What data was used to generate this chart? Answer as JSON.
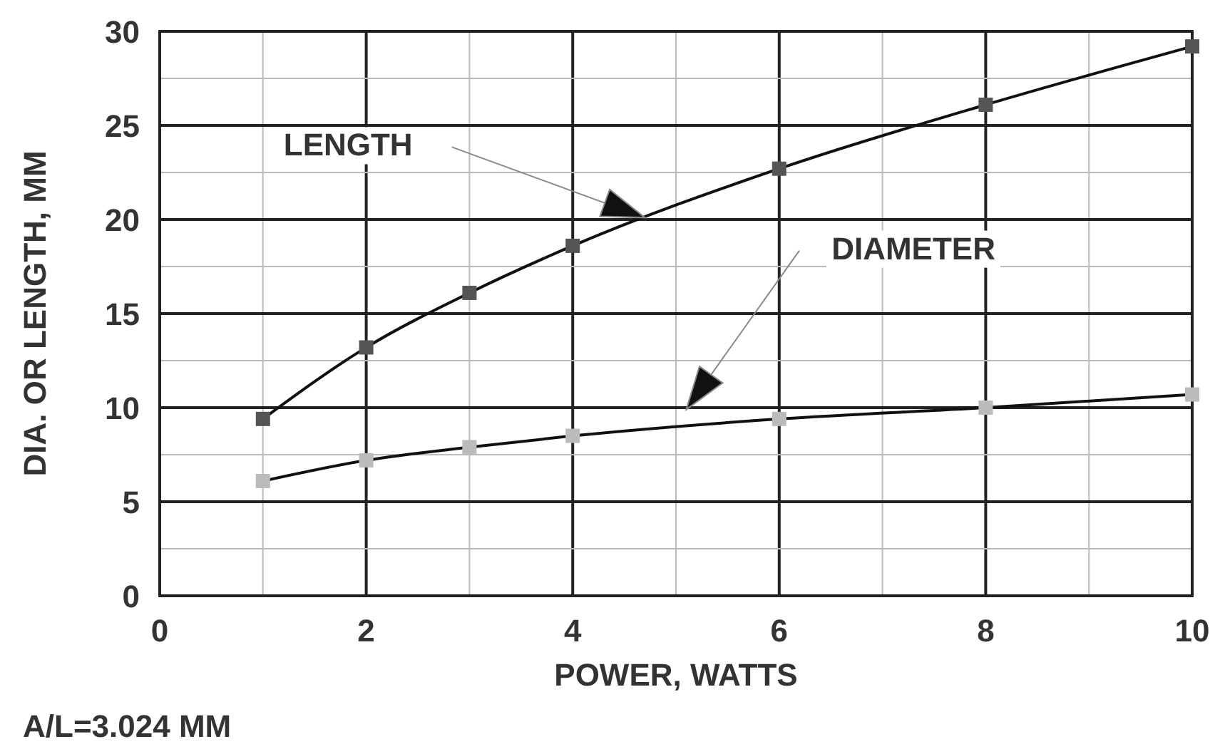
{
  "chart_data": {
    "type": "line",
    "xlabel": "POWER, WATTS",
    "ylabel": "DIA. OR LENGTH, MM",
    "x": [
      1,
      2,
      3,
      4,
      6,
      8,
      10
    ],
    "series": [
      {
        "color": "#555555",
        "values": [
          9.4,
          13.2,
          16.1,
          18.6,
          22.7,
          26.1,
          29.2
        ]
      },
      {
        "color": "#bbbbbb",
        "values": [
          6.1,
          7.2,
          7.9,
          8.5,
          9.4,
          10,
          10.7
        ]
      }
    ],
    "xlim": [
      0,
      10
    ],
    "xticks": [
      0,
      {
        "value": 1,
        "label": null
      },
      2,
      {
        "value": 3,
        "label": null
      },
      4,
      {
        "value": 5,
        "label": null
      },
      6,
      {
        "value": 7,
        "label": null
      },
      8,
      {
        "value": 9,
        "label": null
      },
      10
    ],
    "ylim": [
      0,
      30
    ],
    "yticks": [
      0,
      {
        "value": 2.5,
        "label": null
      },
      5,
      {
        "value": 7.5,
        "label": null
      },
      10,
      {
        "value": 12.5,
        "label": null
      },
      15,
      {
        "value": 17.5,
        "label": null
      },
      20,
      {
        "value": 22.5,
        "label": null
      },
      25,
      {
        "value": 27.5,
        "label": null
      },
      30
    ],
    "grid": true,
    "marker": "square",
    "line_style": "solid",
    "annotations": [
      "LENGTH",
      "DIAMETER",
      "A/L=3.024 MM"
    ]
  }
}
